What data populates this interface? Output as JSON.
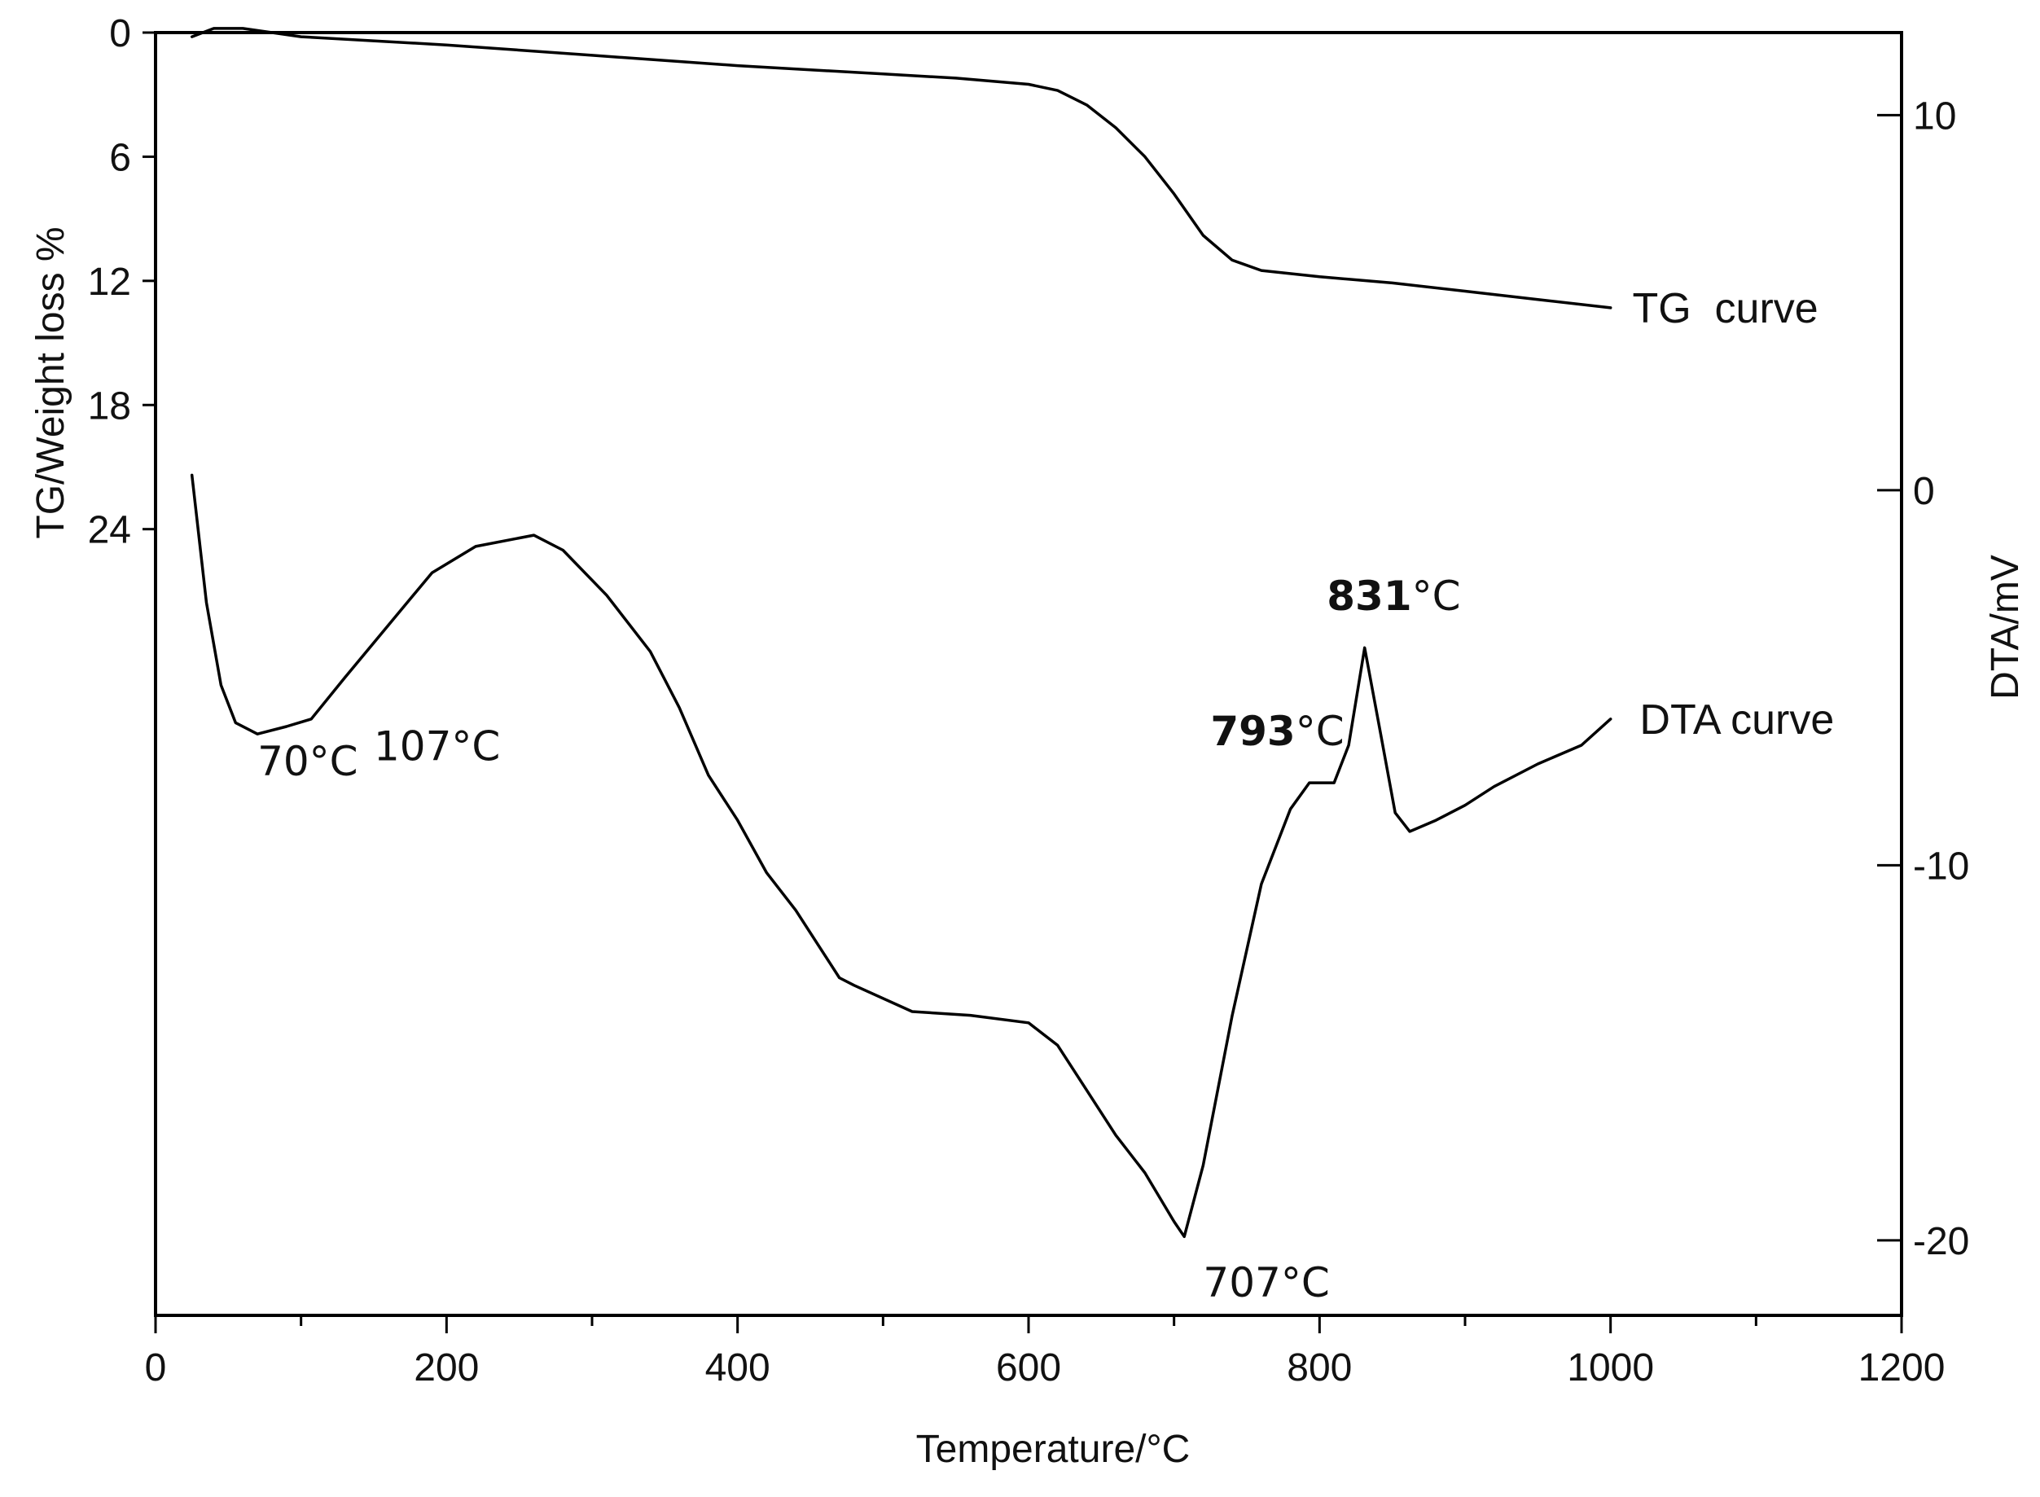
{
  "chart_data": {
    "type": "line",
    "xlabel": "Temperature/°C",
    "ylabel_left": "TG/Weight loss %",
    "ylabel_right": "DTA/mV",
    "xlim": [
      0,
      1200
    ],
    "xticks": [
      0,
      200,
      400,
      600,
      800,
      1000,
      1200
    ],
    "ylim_left": [
      0,
      62
    ],
    "yticks_left": [
      0,
      6,
      12,
      18,
      24
    ],
    "ylim_right": [
      -22,
      12.2
    ],
    "yticks_right": [
      10,
      0,
      -10,
      -20
    ],
    "legend": "none",
    "grid": false,
    "series": [
      {
        "name": "TG  curve",
        "axis": "left",
        "points": [
          [
            25,
            0.2
          ],
          [
            40,
            -0.2
          ],
          [
            60,
            -0.2
          ],
          [
            100,
            0.2
          ],
          [
            200,
            0.6
          ],
          [
            300,
            1.1
          ],
          [
            400,
            1.6
          ],
          [
            500,
            2.0
          ],
          [
            550,
            2.2
          ],
          [
            600,
            2.5
          ],
          [
            620,
            2.8
          ],
          [
            640,
            3.5
          ],
          [
            660,
            4.6
          ],
          [
            680,
            6.0
          ],
          [
            700,
            7.8
          ],
          [
            720,
            9.8
          ],
          [
            740,
            11.0
          ],
          [
            760,
            11.5
          ],
          [
            800,
            11.8
          ],
          [
            850,
            12.1
          ],
          [
            900,
            12.5
          ],
          [
            950,
            12.9
          ],
          [
            1000,
            13.3
          ]
        ]
      },
      {
        "name": "DTA curve",
        "axis": "right",
        "points": [
          [
            25,
            0.4
          ],
          [
            35,
            -3.0
          ],
          [
            45,
            -5.2
          ],
          [
            55,
            -6.2
          ],
          [
            70,
            -6.5
          ],
          [
            90,
            -6.3
          ],
          [
            107,
            -6.1
          ],
          [
            130,
            -5.0
          ],
          [
            160,
            -3.6
          ],
          [
            190,
            -2.2
          ],
          [
            220,
            -1.5
          ],
          [
            260,
            -1.2
          ],
          [
            280,
            -1.6
          ],
          [
            310,
            -2.8
          ],
          [
            340,
            -4.3
          ],
          [
            360,
            -5.8
          ],
          [
            380,
            -7.6
          ],
          [
            400,
            -8.8
          ],
          [
            420,
            -10.2
          ],
          [
            440,
            -11.2
          ],
          [
            460,
            -12.4
          ],
          [
            470,
            -13.0
          ],
          [
            480,
            -13.2
          ],
          [
            520,
            -13.9
          ],
          [
            560,
            -14.0
          ],
          [
            600,
            -14.2
          ],
          [
            620,
            -14.8
          ],
          [
            640,
            -16.0
          ],
          [
            660,
            -17.2
          ],
          [
            680,
            -18.2
          ],
          [
            700,
            -19.5
          ],
          [
            707,
            -19.9
          ],
          [
            720,
            -18.0
          ],
          [
            740,
            -14.0
          ],
          [
            760,
            -10.5
          ],
          [
            780,
            -8.5
          ],
          [
            793,
            -7.8
          ],
          [
            810,
            -7.8
          ],
          [
            820,
            -6.8
          ],
          [
            831,
            -4.2
          ],
          [
            842,
            -6.5
          ],
          [
            852,
            -8.6
          ],
          [
            862,
            -9.1
          ],
          [
            880,
            -8.8
          ],
          [
            900,
            -8.4
          ],
          [
            920,
            -7.9
          ],
          [
            950,
            -7.3
          ],
          [
            980,
            -6.8
          ],
          [
            1000,
            -6.1
          ]
        ]
      }
    ],
    "annotations": [
      {
        "id": "a70",
        "prefix": "",
        "value": "70°C",
        "x": 70,
        "y": -7.6,
        "axis": "right",
        "bold_part": ""
      },
      {
        "id": "a107",
        "prefix": "",
        "value": "107°C",
        "x": 150,
        "y": -7.2,
        "axis": "right",
        "bold_part": ""
      },
      {
        "id": "a707",
        "prefix": "",
        "value": "707°C",
        "x": 720,
        "y": -21.5,
        "axis": "right",
        "bold_part": ""
      },
      {
        "id": "a793",
        "prefix": "793",
        "value": "°C",
        "x": 725,
        "y": -6.8,
        "axis": "right",
        "bold_part": "793"
      },
      {
        "id": "a831",
        "prefix": "831",
        "value": "°C",
        "x": 805,
        "y": -3.2,
        "axis": "right",
        "bold_part": "831"
      }
    ],
    "curve_labels": [
      {
        "id": "tg-label",
        "text": "TG  curve",
        "x": 1015,
        "y": 13.3,
        "axis": "left"
      },
      {
        "id": "dta-label",
        "text": "DTA curve",
        "x": 1020,
        "y": -6.1,
        "axis": "right"
      }
    ]
  }
}
